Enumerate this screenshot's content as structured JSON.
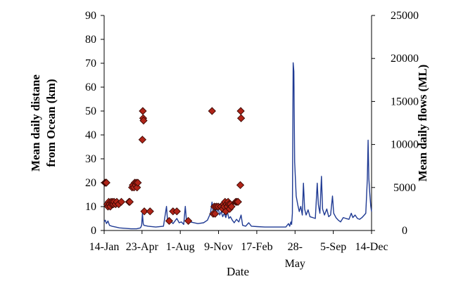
{
  "chart_data": {
    "type": "scatter+line",
    "title": "",
    "xlabel": "Date",
    "ylabel_left": "Mean daily distance from Ocean (km)",
    "ylabel_left_lines": [
      "Mean daily distane",
      "from Ocean (km)"
    ],
    "ylabel_right": "Mean daily flows (ML)",
    "x_tick_labels": [
      "14-Jan",
      "23-Apr",
      "1-Aug",
      "9-Nov",
      "17-Feb",
      "28-",
      "5-Sep",
      "14-Dec"
    ],
    "x_tick_label_continuation": {
      "28-": "May"
    },
    "x_tick_days": [
      0,
      99,
      199,
      299,
      399,
      499,
      599,
      699
    ],
    "xlim_days": [
      0,
      699
    ],
    "left_axis": {
      "min": 0,
      "max": 90,
      "ticks": [
        0,
        10,
        20,
        30,
        40,
        50,
        60,
        70,
        80,
        90
      ]
    },
    "right_axis": {
      "min": 0,
      "max": 25000,
      "ticks": [
        0,
        5000,
        10000,
        15000,
        20000,
        25000
      ]
    },
    "grid": false,
    "series": [
      {
        "name": "Mean daily distance from Ocean (km)",
        "type": "scatter",
        "marker": "diamond",
        "axis": "left",
        "color": "#b02418",
        "points": [
          {
            "day": 2,
            "value": 20
          },
          {
            "day": 4,
            "value": 20
          },
          {
            "day": 6,
            "value": 20
          },
          {
            "day": 8,
            "value": 11
          },
          {
            "day": 10,
            "value": 10
          },
          {
            "day": 12,
            "value": 12
          },
          {
            "day": 14,
            "value": 11
          },
          {
            "day": 16,
            "value": 10
          },
          {
            "day": 18,
            "value": 12
          },
          {
            "day": 20,
            "value": 11
          },
          {
            "day": 22,
            "value": 12
          },
          {
            "day": 24,
            "value": 11
          },
          {
            "day": 26,
            "value": 12
          },
          {
            "day": 30,
            "value": 11
          },
          {
            "day": 33,
            "value": 12
          },
          {
            "day": 38,
            "value": 11
          },
          {
            "day": 45,
            "value": 12
          },
          {
            "day": 65,
            "value": 12
          },
          {
            "day": 67,
            "value": 12
          },
          {
            "day": 73,
            "value": 18
          },
          {
            "day": 75,
            "value": 19
          },
          {
            "day": 78,
            "value": 18
          },
          {
            "day": 80,
            "value": 20
          },
          {
            "day": 82,
            "value": 19
          },
          {
            "day": 84,
            "value": 20
          },
          {
            "day": 86,
            "value": 18
          },
          {
            "day": 88,
            "value": 20
          },
          {
            "day": 101,
            "value": 50
          },
          {
            "day": 102,
            "value": 47
          },
          {
            "day": 103,
            "value": 46
          },
          {
            "day": 100,
            "value": 38
          },
          {
            "day": 105,
            "value": 8
          },
          {
            "day": 120,
            "value": 8
          },
          {
            "day": 170,
            "value": 4
          },
          {
            "day": 180,
            "value": 8
          },
          {
            "day": 190,
            "value": 8
          },
          {
            "day": 220,
            "value": 4
          },
          {
            "day": 282,
            "value": 50
          },
          {
            "day": 285,
            "value": 7
          },
          {
            "day": 288,
            "value": 10
          },
          {
            "day": 290,
            "value": 7
          },
          {
            "day": 293,
            "value": 10
          },
          {
            "day": 298,
            "value": 10
          },
          {
            "day": 305,
            "value": 10
          },
          {
            "day": 310,
            "value": 9
          },
          {
            "day": 312,
            "value": 11
          },
          {
            "day": 314,
            "value": 10
          },
          {
            "day": 316,
            "value": 12
          },
          {
            "day": 318,
            "value": 8
          },
          {
            "day": 320,
            "value": 11
          },
          {
            "day": 322,
            "value": 10
          },
          {
            "day": 324,
            "value": 12
          },
          {
            "day": 326,
            "value": 11
          },
          {
            "day": 328,
            "value": 9
          },
          {
            "day": 330,
            "value": 11
          },
          {
            "day": 333,
            "value": 10
          },
          {
            "day": 344,
            "value": 12
          },
          {
            "day": 347,
            "value": 12
          },
          {
            "day": 350,
            "value": 12
          },
          {
            "day": 357,
            "value": 50
          },
          {
            "day": 358,
            "value": 47
          },
          {
            "day": 356,
            "value": 19
          }
        ]
      },
      {
        "name": "Mean daily flows (ML)",
        "type": "line",
        "axis": "right",
        "color": "#1f3a93",
        "points": [
          {
            "day": 0,
            "value": 1000
          },
          {
            "day": 3,
            "value": 1200
          },
          {
            "day": 6,
            "value": 800
          },
          {
            "day": 10,
            "value": 1100
          },
          {
            "day": 14,
            "value": 600
          },
          {
            "day": 20,
            "value": 500
          },
          {
            "day": 30,
            "value": 400
          },
          {
            "day": 40,
            "value": 300
          },
          {
            "day": 55,
            "value": 250
          },
          {
            "day": 70,
            "value": 200
          },
          {
            "day": 85,
            "value": 200
          },
          {
            "day": 95,
            "value": 300
          },
          {
            "day": 98,
            "value": 600
          },
          {
            "day": 100,
            "value": 2000
          },
          {
            "day": 102,
            "value": 800
          },
          {
            "day": 104,
            "value": 600
          },
          {
            "day": 115,
            "value": 500
          },
          {
            "day": 135,
            "value": 400
          },
          {
            "day": 155,
            "value": 500
          },
          {
            "day": 163,
            "value": 2800
          },
          {
            "day": 166,
            "value": 1000
          },
          {
            "day": 172,
            "value": 1200
          },
          {
            "day": 180,
            "value": 800
          },
          {
            "day": 190,
            "value": 1400
          },
          {
            "day": 196,
            "value": 900
          },
          {
            "day": 202,
            "value": 1000
          },
          {
            "day": 208,
            "value": 700
          },
          {
            "day": 212,
            "value": 2800
          },
          {
            "day": 215,
            "value": 1200
          },
          {
            "day": 225,
            "value": 1000
          },
          {
            "day": 245,
            "value": 800
          },
          {
            "day": 260,
            "value": 900
          },
          {
            "day": 270,
            "value": 1200
          },
          {
            "day": 278,
            "value": 2000
          },
          {
            "day": 282,
            "value": 3300
          },
          {
            "day": 286,
            "value": 1800
          },
          {
            "day": 290,
            "value": 2500
          },
          {
            "day": 294,
            "value": 2000
          },
          {
            "day": 298,
            "value": 2600
          },
          {
            "day": 302,
            "value": 1800
          },
          {
            "day": 306,
            "value": 2200
          },
          {
            "day": 310,
            "value": 1600
          },
          {
            "day": 314,
            "value": 2000
          },
          {
            "day": 318,
            "value": 1500
          },
          {
            "day": 322,
            "value": 2200
          },
          {
            "day": 326,
            "value": 1400
          },
          {
            "day": 330,
            "value": 1600
          },
          {
            "day": 335,
            "value": 1200
          },
          {
            "day": 340,
            "value": 900
          },
          {
            "day": 346,
            "value": 1300
          },
          {
            "day": 352,
            "value": 1000
          },
          {
            "day": 358,
            "value": 1800
          },
          {
            "day": 362,
            "value": 600
          },
          {
            "day": 370,
            "value": 500
          },
          {
            "day": 378,
            "value": 900
          },
          {
            "day": 385,
            "value": 500
          },
          {
            "day": 400,
            "value": 450
          },
          {
            "day": 420,
            "value": 400
          },
          {
            "day": 440,
            "value": 400
          },
          {
            "day": 460,
            "value": 400
          },
          {
            "day": 475,
            "value": 400
          },
          {
            "day": 482,
            "value": 800
          },
          {
            "day": 485,
            "value": 500
          },
          {
            "day": 488,
            "value": 1000
          },
          {
            "day": 490,
            "value": 700
          },
          {
            "day": 492,
            "value": 2000
          },
          {
            "day": 494,
            "value": 19500
          },
          {
            "day": 496,
            "value": 18500
          },
          {
            "day": 498,
            "value": 8000
          },
          {
            "day": 502,
            "value": 4000
          },
          {
            "day": 506,
            "value": 3000
          },
          {
            "day": 510,
            "value": 2200
          },
          {
            "day": 514,
            "value": 2800
          },
          {
            "day": 518,
            "value": 1800
          },
          {
            "day": 521,
            "value": 5500
          },
          {
            "day": 524,
            "value": 2500
          },
          {
            "day": 528,
            "value": 1800
          },
          {
            "day": 533,
            "value": 2400
          },
          {
            "day": 538,
            "value": 1600
          },
          {
            "day": 545,
            "value": 1500
          },
          {
            "day": 552,
            "value": 1400
          },
          {
            "day": 557,
            "value": 5500
          },
          {
            "day": 560,
            "value": 3000
          },
          {
            "day": 564,
            "value": 2000
          },
          {
            "day": 568,
            "value": 6300
          },
          {
            "day": 571,
            "value": 2500
          },
          {
            "day": 576,
            "value": 1800
          },
          {
            "day": 582,
            "value": 2500
          },
          {
            "day": 587,
            "value": 1600
          },
          {
            "day": 592,
            "value": 1800
          },
          {
            "day": 597,
            "value": 4000
          },
          {
            "day": 600,
            "value": 2000
          },
          {
            "day": 606,
            "value": 1500
          },
          {
            "day": 612,
            "value": 1200
          },
          {
            "day": 618,
            "value": 1000
          },
          {
            "day": 625,
            "value": 1500
          },
          {
            "day": 632,
            "value": 1400
          },
          {
            "day": 640,
            "value": 1300
          },
          {
            "day": 646,
            "value": 2000
          },
          {
            "day": 650,
            "value": 1500
          },
          {
            "day": 656,
            "value": 1800
          },
          {
            "day": 662,
            "value": 1400
          },
          {
            "day": 668,
            "value": 1300
          },
          {
            "day": 674,
            "value": 1500
          },
          {
            "day": 680,
            "value": 1800
          },
          {
            "day": 684,
            "value": 2000
          },
          {
            "day": 688,
            "value": 6000
          },
          {
            "day": 690,
            "value": 10500
          },
          {
            "day": 692,
            "value": 6000
          },
          {
            "day": 694,
            "value": 4500
          },
          {
            "day": 697,
            "value": 2800
          },
          {
            "day": 699,
            "value": 2200
          }
        ]
      }
    ]
  }
}
